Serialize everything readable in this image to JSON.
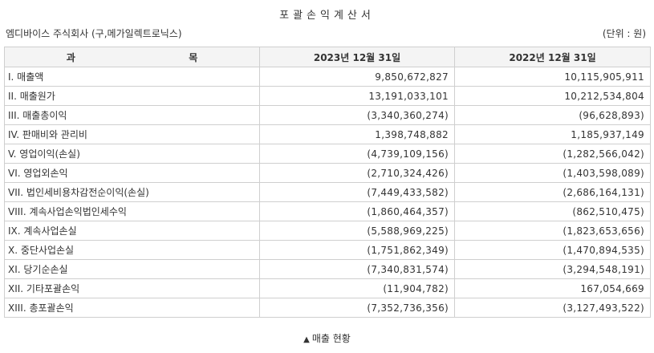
{
  "header": {
    "title": "포괄손익계산서",
    "company": "엠디바이스 주식회사 (구,메가일렉트로닉스)",
    "unit": "(단위 : 원)"
  },
  "table": {
    "columns": [
      "과",
      "목",
      "2023년 12월 31일",
      "2022년 12월 31일"
    ],
    "rows": [
      {
        "label": "I. 매출액",
        "y2023": "9,850,672,827",
        "y2022": "10,115,905,911"
      },
      {
        "label": "II. 매출원가",
        "y2023": "13,191,033,101",
        "y2022": "10,212,534,804"
      },
      {
        "label": "III. 매출총이익",
        "y2023": "(3,340,360,274)",
        "y2022": "(96,628,893)"
      },
      {
        "label": "IV. 판매비와 관리비",
        "y2023": "1,398,748,882",
        "y2022": "1,185,937,149"
      },
      {
        "label": "V. 영업이익(손실)",
        "y2023": "(4,739,109,156)",
        "y2022": "(1,282,566,042)"
      },
      {
        "label": "VI. 영업외손익",
        "y2023": "(2,710,324,426)",
        "y2022": "(1,403,598,089)"
      },
      {
        "label": "VII. 법인세비용차감전순이익(손실)",
        "y2023": "(7,449,433,582)",
        "y2022": "(2,686,164,131)"
      },
      {
        "label": "VIII. 계속사업손익법인세수익",
        "y2023": "(1,860,464,357)",
        "y2022": "(862,510,475)"
      },
      {
        "label": "IX. 계속사업손실",
        "y2023": "(5,588,969,225)",
        "y2022": "(1,823,653,656)"
      },
      {
        "label": "X. 중단사업손실",
        "y2023": "(1,751,862,349)",
        "y2022": "(1,470,894,535)"
      },
      {
        "label": "XI. 당기순손실",
        "y2023": "(7,340,831,574)",
        "y2022": "(3,294,548,191)"
      },
      {
        "label": "XII. 기타포괄손익",
        "y2023": "(11,904,782)",
        "y2022": "167,054,669"
      },
      {
        "label": "XIII. 총포괄손익",
        "y2023": "(7,352,736,356)",
        "y2022": "(3,127,493,522)"
      }
    ]
  },
  "caption": {
    "icon": "triangle-up-icon",
    "text": "매출 현황"
  }
}
